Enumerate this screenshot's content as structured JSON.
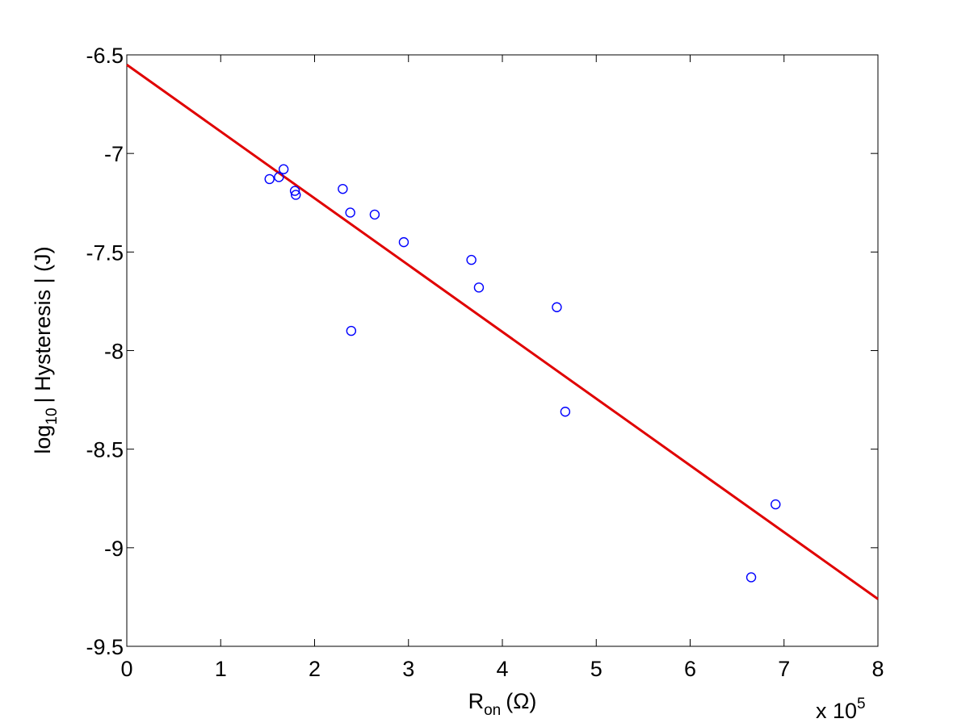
{
  "chart_data": {
    "type": "scatter",
    "title": "",
    "xlabel": "R",
    "xlabel_subscript": "on",
    "xlabel_unit": "(Ω)",
    "ylabel_prefix": "log",
    "ylabel_subscript": "10",
    "ylabel_rest": "| Hysteresis | (J)",
    "x_multiplier": "x 10",
    "x_multiplier_exp": "5",
    "xlim": [
      0,
      8
    ],
    "ylim": [
      -9.5,
      -6.5
    ],
    "xticks": [
      "0",
      "1",
      "2",
      "3",
      "4",
      "5",
      "6",
      "7",
      "8"
    ],
    "yticks": [
      "-6.5",
      "-7",
      "-7.5",
      "-8",
      "-8.5",
      "-9",
      "-9.5"
    ],
    "grid": false,
    "colors": {
      "points": "#0000ff",
      "fit": "#e00000",
      "axes": "#000000"
    },
    "series": [
      {
        "kind": "scatter",
        "marker": "circle",
        "x": [
          1.52,
          1.62,
          1.67,
          1.79,
          1.8,
          2.3,
          2.38,
          2.39,
          2.64,
          2.95,
          3.67,
          3.75,
          4.58,
          4.67,
          6.65,
          6.91
        ],
        "y": [
          -7.13,
          -7.12,
          -7.08,
          -7.19,
          -7.21,
          -7.18,
          -7.3,
          -7.9,
          -7.31,
          -7.45,
          -7.54,
          -7.68,
          -7.78,
          -8.31,
          -9.15,
          -8.78
        ]
      },
      {
        "kind": "line",
        "x": [
          0,
          8
        ],
        "y": [
          -6.55,
          -9.26
        ]
      }
    ]
  }
}
